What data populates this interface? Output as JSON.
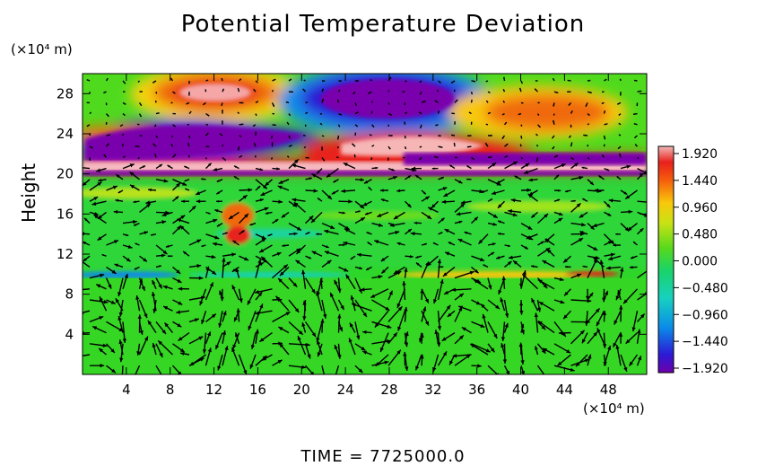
{
  "title": "Potential Temperature Deviation",
  "x_unit": "(×10⁴ m)",
  "y_unit": "(×10⁴ m)",
  "time_text": "TIME = 7725000.0",
  "chart_data": {
    "type": "heatmap",
    "title": "Potential Temperature Deviation",
    "xlabel": "",
    "ylabel": "Height",
    "xlim": [
      0,
      51.5
    ],
    "ylim": [
      0,
      30
    ],
    "x_ticks": [
      "4",
      "8",
      "12",
      "16",
      "20",
      "24",
      "28",
      "32",
      "36",
      "40",
      "44",
      "48"
    ],
    "y_ticks": [
      "4",
      "8",
      "12",
      "16",
      "20",
      "24",
      "28"
    ],
    "colorbar": {
      "labels": [
        "1.920",
        "1.440",
        "0.960",
        "0.480",
        "0.000",
        "−0.480",
        "−0.960",
        "−1.440",
        "−1.920"
      ],
      "range": [
        -1.92,
        1.92
      ]
    },
    "overlay": "wind vector arrows",
    "features": [
      {
        "x": 12,
        "y": 28,
        "value": 1.9
      },
      {
        "x": 28,
        "y": 27.5,
        "value": -1.9
      },
      {
        "x": 44,
        "y": 26.5,
        "value": 1.3
      },
      {
        "x": 10,
        "y": 23.5,
        "value": -1.9
      },
      {
        "x": 28,
        "y": 22.5,
        "value": 1.9
      },
      {
        "x": 14,
        "y": 15,
        "value": 1.4
      },
      {
        "x": 45,
        "y": 10,
        "value": 1.0
      },
      {
        "x": 5,
        "y": 10,
        "value": -0.9
      }
    ]
  }
}
